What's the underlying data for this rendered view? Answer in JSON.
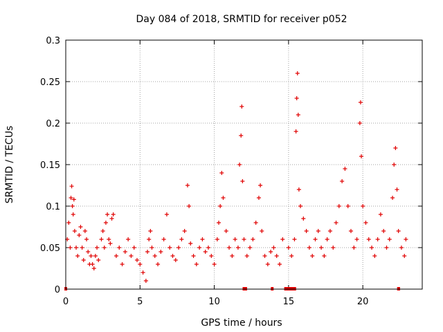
{
  "chart_data": {
    "type": "scatter",
    "title": "Day 084 of 2018, SRMTID for receiver p052",
    "xlabel": "GPS time / hours",
    "ylabel": "SRMTID / TECUs",
    "xlim": [
      0,
      24
    ],
    "ylim": [
      0,
      0.3
    ],
    "x_ticks": [
      0,
      5,
      10,
      15,
      20
    ],
    "x_tick_labels": [
      "0",
      "5",
      "10",
      "15",
      "20"
    ],
    "y_ticks": [
      0,
      0.05,
      0.1,
      0.15,
      0.2,
      0.25,
      0.3
    ],
    "y_tick_labels": [
      "0",
      "0.05",
      "0.1",
      "0.15",
      "0.2",
      "0.25",
      "0.3"
    ],
    "grid": true,
    "marker": "+",
    "color": "#e00000",
    "series": [
      {
        "name": "SRMTID",
        "points": [
          [
            0.1,
            0.06
          ],
          [
            0.2,
            0.08
          ],
          [
            0.3,
            0.05
          ],
          [
            0.35,
            0.11
          ],
          [
            0.4,
            0.124
          ],
          [
            0.45,
            0.1
          ],
          [
            0.5,
            0.09
          ],
          [
            0.55,
            0.108
          ],
          [
            0.6,
            0.07
          ],
          [
            0.7,
            0.05
          ],
          [
            0.8,
            0.04
          ],
          [
            0.9,
            0.065
          ],
          [
            1.0,
            0.075
          ],
          [
            1.1,
            0.05
          ],
          [
            1.2,
            0.035
          ],
          [
            1.3,
            0.07
          ],
          [
            1.4,
            0.06
          ],
          [
            1.5,
            0.045
          ],
          [
            1.6,
            0.03
          ],
          [
            1.7,
            0.04
          ],
          [
            1.8,
            0.03
          ],
          [
            1.9,
            0.025
          ],
          [
            2.0,
            0.04
          ],
          [
            2.1,
            0.05
          ],
          [
            2.2,
            0.035
          ],
          [
            2.4,
            0.06
          ],
          [
            2.5,
            0.07
          ],
          [
            2.6,
            0.05
          ],
          [
            2.7,
            0.08
          ],
          [
            2.8,
            0.09
          ],
          [
            2.9,
            0.06
          ],
          [
            3.0,
            0.055
          ],
          [
            3.1,
            0.085
          ],
          [
            3.2,
            0.09
          ],
          [
            3.4,
            0.04
          ],
          [
            3.6,
            0.05
          ],
          [
            3.8,
            0.03
          ],
          [
            4.0,
            0.045
          ],
          [
            4.2,
            0.06
          ],
          [
            4.4,
            0.04
          ],
          [
            4.6,
            0.05
          ],
          [
            4.8,
            0.035
          ],
          [
            5.0,
            0.03
          ],
          [
            5.2,
            0.02
          ],
          [
            5.4,
            0.01
          ],
          [
            5.5,
            0.045
          ],
          [
            5.6,
            0.06
          ],
          [
            5.7,
            0.07
          ],
          [
            5.8,
            0.05
          ],
          [
            6.0,
            0.04
          ],
          [
            6.2,
            0.03
          ],
          [
            6.4,
            0.045
          ],
          [
            6.6,
            0.06
          ],
          [
            6.8,
            0.09
          ],
          [
            7.0,
            0.05
          ],
          [
            7.2,
            0.04
          ],
          [
            7.4,
            0.035
          ],
          [
            7.6,
            0.05
          ],
          [
            7.8,
            0.06
          ],
          [
            8.0,
            0.07
          ],
          [
            8.2,
            0.125
          ],
          [
            8.3,
            0.1
          ],
          [
            8.4,
            0.055
          ],
          [
            8.6,
            0.04
          ],
          [
            8.8,
            0.03
          ],
          [
            9.0,
            0.05
          ],
          [
            9.2,
            0.06
          ],
          [
            9.4,
            0.045
          ],
          [
            9.6,
            0.05
          ],
          [
            9.8,
            0.04
          ],
          [
            10.0,
            0.03
          ],
          [
            10.2,
            0.06
          ],
          [
            10.3,
            0.08
          ],
          [
            10.4,
            0.1
          ],
          [
            10.5,
            0.14
          ],
          [
            10.6,
            0.11
          ],
          [
            10.8,
            0.07
          ],
          [
            11.0,
            0.05
          ],
          [
            11.2,
            0.04
          ],
          [
            11.4,
            0.06
          ],
          [
            11.6,
            0.05
          ],
          [
            11.7,
            0.15
          ],
          [
            11.8,
            0.185
          ],
          [
            11.85,
            0.22
          ],
          [
            11.9,
            0.13
          ],
          [
            12.0,
            0.06
          ],
          [
            12.2,
            0.04
          ],
          [
            12.4,
            0.05
          ],
          [
            12.6,
            0.06
          ],
          [
            12.8,
            0.08
          ],
          [
            13.0,
            0.11
          ],
          [
            13.1,
            0.125
          ],
          [
            13.2,
            0.07
          ],
          [
            13.4,
            0.04
          ],
          [
            13.6,
            0.03
          ],
          [
            13.8,
            0.045
          ],
          [
            14.0,
            0.05
          ],
          [
            14.2,
            0.04
          ],
          [
            14.4,
            0.03
          ],
          [
            14.6,
            0.06
          ],
          [
            15.0,
            0.05
          ],
          [
            15.2,
            0.04
          ],
          [
            15.4,
            0.06
          ],
          [
            15.5,
            0.19
          ],
          [
            15.55,
            0.23
          ],
          [
            15.6,
            0.26
          ],
          [
            15.65,
            0.21
          ],
          [
            15.7,
            0.12
          ],
          [
            15.8,
            0.1
          ],
          [
            16.0,
            0.085
          ],
          [
            16.2,
            0.07
          ],
          [
            16.4,
            0.05
          ],
          [
            16.6,
            0.04
          ],
          [
            16.8,
            0.06
          ],
          [
            17.0,
            0.07
          ],
          [
            17.2,
            0.05
          ],
          [
            17.4,
            0.04
          ],
          [
            17.6,
            0.06
          ],
          [
            17.8,
            0.07
          ],
          [
            18.0,
            0.05
          ],
          [
            18.2,
            0.08
          ],
          [
            18.4,
            0.1
          ],
          [
            18.6,
            0.13
          ],
          [
            18.8,
            0.145
          ],
          [
            19.0,
            0.1
          ],
          [
            19.2,
            0.07
          ],
          [
            19.4,
            0.05
          ],
          [
            19.6,
            0.06
          ],
          [
            19.8,
            0.2
          ],
          [
            19.85,
            0.225
          ],
          [
            19.9,
            0.16
          ],
          [
            20.0,
            0.1
          ],
          [
            20.2,
            0.08
          ],
          [
            20.4,
            0.06
          ],
          [
            20.6,
            0.05
          ],
          [
            20.8,
            0.04
          ],
          [
            21.0,
            0.06
          ],
          [
            21.2,
            0.09
          ],
          [
            21.4,
            0.07
          ],
          [
            21.6,
            0.05
          ],
          [
            21.8,
            0.06
          ],
          [
            22.0,
            0.11
          ],
          [
            22.1,
            0.15
          ],
          [
            22.2,
            0.17
          ],
          [
            22.3,
            0.12
          ],
          [
            22.4,
            0.07
          ],
          [
            22.6,
            0.05
          ],
          [
            22.8,
            0.04
          ],
          [
            22.9,
            0.06
          ]
        ]
      }
    ],
    "data_gaps_near_zero_hours": [
      [
        0.0,
        0.1
      ],
      [
        12.0,
        12.3
      ],
      [
        13.9,
        14.05
      ],
      [
        14.8,
        15.6
      ],
      [
        22.4,
        22.6
      ]
    ]
  }
}
